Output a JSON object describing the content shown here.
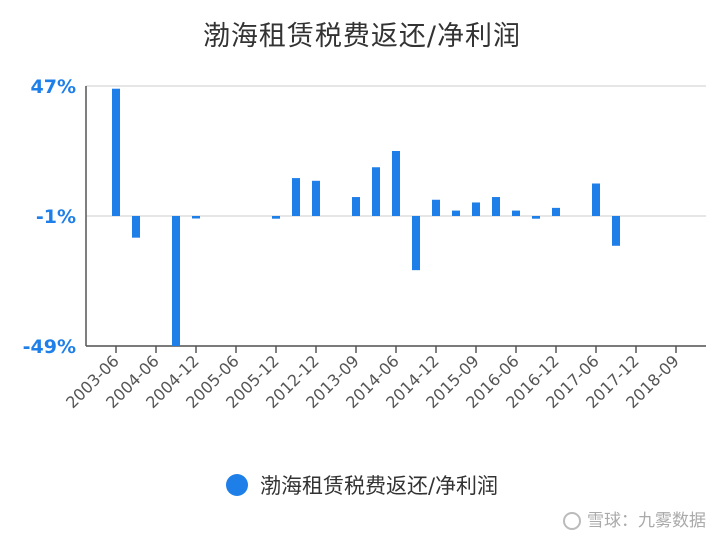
{
  "chart_data": {
    "type": "bar",
    "title": "渤海租赁税费返还/净利润",
    "yticks": [
      "47%",
      "-1%",
      "-49%"
    ],
    "ylim": [
      -49,
      47
    ],
    "x_tick_labels": [
      "2003-06",
      "2004-06",
      "2004-12",
      "2005-06",
      "2005-12",
      "2012-12",
      "2013-09",
      "2014-06",
      "2014-12",
      "2015-09",
      "2016-06",
      "2016-12",
      "2017-06",
      "2017-12",
      "2018-09"
    ],
    "values": [
      46,
      -9,
      null,
      -49,
      -1,
      null,
      null,
      null,
      -2,
      13,
      12,
      null,
      6,
      17,
      23,
      -21,
      5,
      1,
      4,
      6,
      1,
      -2,
      2,
      null,
      11,
      -12,
      null,
      null
    ],
    "series": [
      {
        "name": "渤海租赁税费返还/净利润",
        "color": "#1f7fe8"
      }
    ],
    "legend_position": "bottom",
    "grid": true
  },
  "watermark": "雪球：九雾数据"
}
